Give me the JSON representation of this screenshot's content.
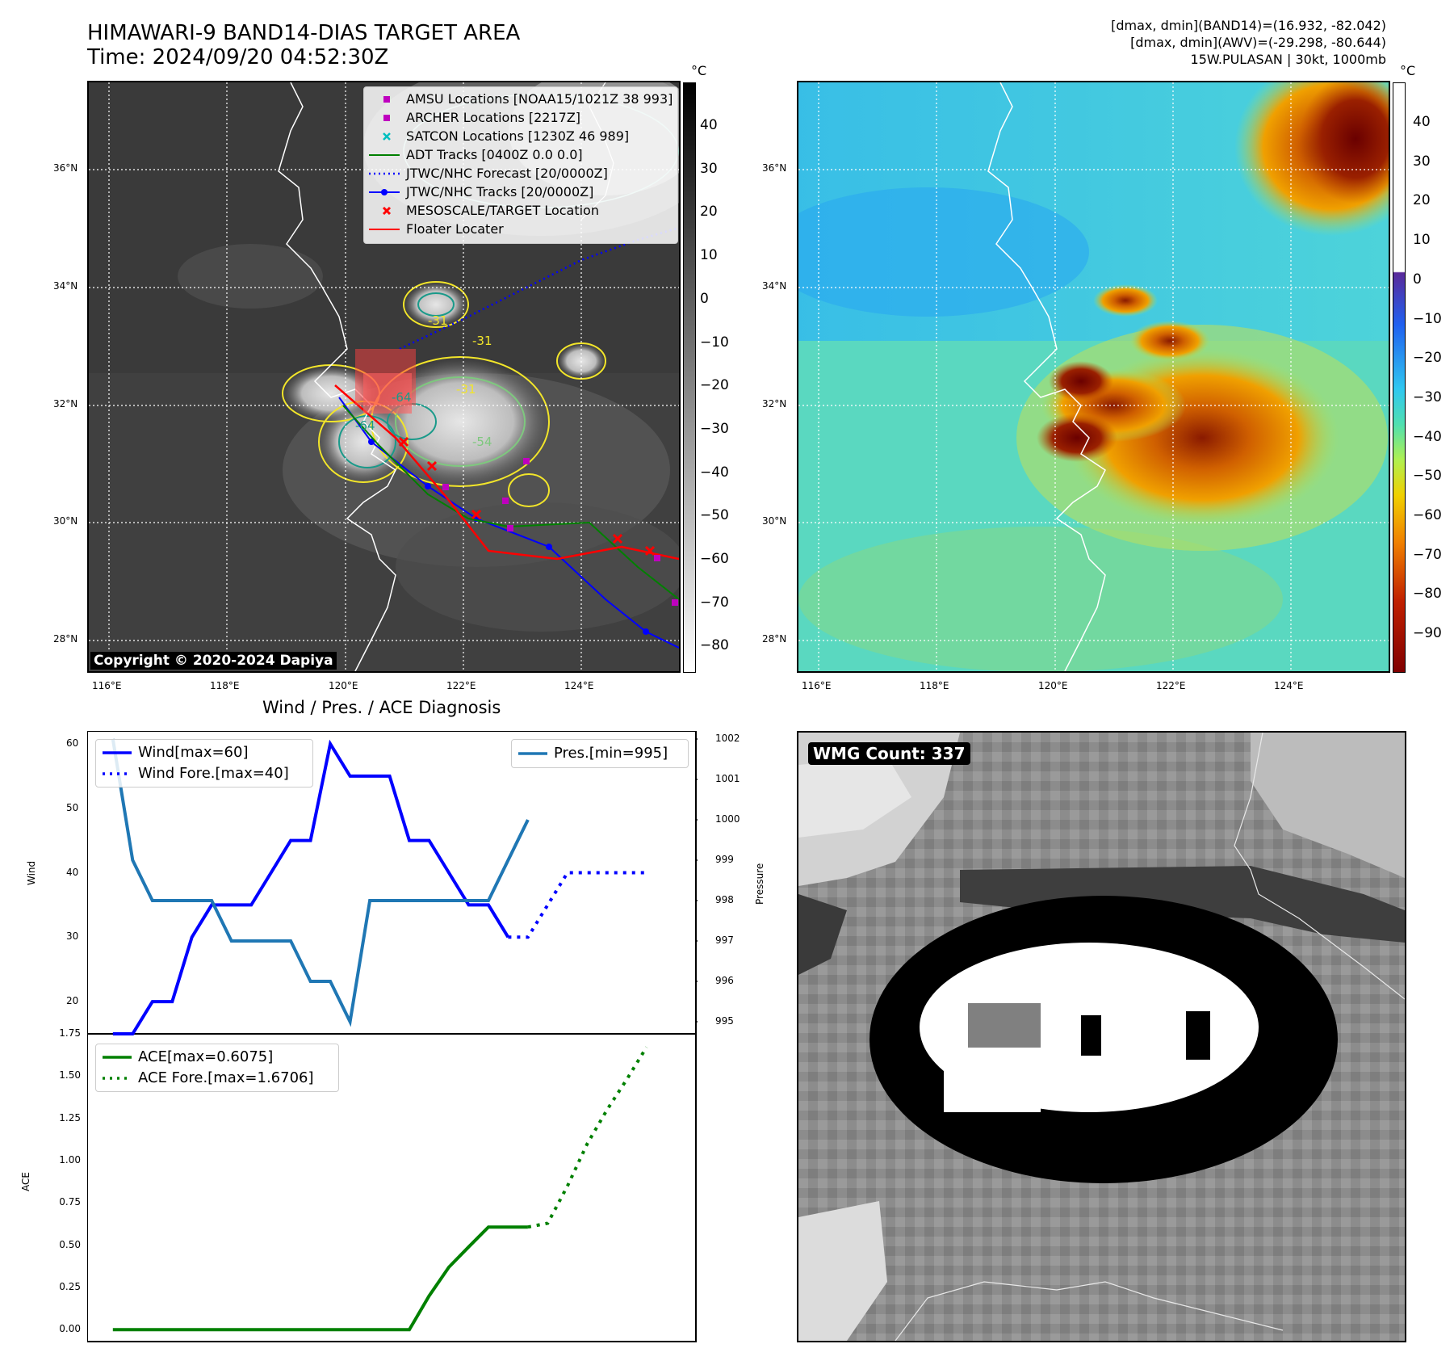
{
  "header": {
    "title_line1": "HIMAWARI-9 BAND14-DIAS TARGET AREA",
    "title_line2": "Time: 2024/09/20 04:52:30Z",
    "stats_line1": "[dmax, dmin](BAND14)=(16.932, -82.042)",
    "stats_line2": "[dmax, dmin](AWV)=(-29.298, -80.644)",
    "stats_line3": "15W.PULASAN | 30kt, 1000mb"
  },
  "map_left": {
    "lat_labels": [
      "36°N",
      "34°N",
      "32°N",
      "30°N",
      "28°N"
    ],
    "lon_labels": [
      "116°E",
      "118°E",
      "120°E",
      "122°E",
      "124°E"
    ],
    "contour_labels": [
      "-31",
      "-31",
      "-31",
      "-64",
      "-64",
      "-54"
    ],
    "copyright": "Copyright © 2020-2024 Dapiya",
    "legend": [
      {
        "label": "AMSU Locations [NOAA15/1021Z 38 993]",
        "marker": "square",
        "color": "#bf00bf"
      },
      {
        "label": "ARCHER Locations [2217Z]",
        "marker": "square",
        "color": "#bf00bf"
      },
      {
        "label": "SATCON Locations [1230Z 46 989]",
        "marker": "x",
        "color": "#00bfbf"
      },
      {
        "label": "ADT Tracks [0400Z 0.0 0.0]",
        "marker": "line",
        "color": "#008000"
      },
      {
        "label": "JTWC/NHC Forecast [20/0000Z]",
        "marker": "dotted",
        "color": "#0000ff"
      },
      {
        "label": "JTWC/NHC Tracks [20/0000Z]",
        "marker": "line-dot",
        "color": "#0000ff"
      },
      {
        "label": "MESOSCALE/TARGET Location",
        "marker": "x",
        "color": "#ff0000"
      },
      {
        "label": "Floater Locater",
        "marker": "line",
        "color": "#ff0000"
      }
    ],
    "colorbar": {
      "unit": "°C",
      "ticks": [
        "40",
        "30",
        "20",
        "10",
        "0",
        "−10",
        "−20",
        "−30",
        "−40",
        "−50",
        "−60",
        "−70",
        "−80"
      ]
    }
  },
  "map_right": {
    "lat_labels": [
      "36°N",
      "34°N",
      "32°N",
      "30°N",
      "28°N"
    ],
    "lon_labels": [
      "116°E",
      "118°E",
      "120°E",
      "122°E",
      "124°E"
    ],
    "colorbar": {
      "unit": "°C",
      "ticks": [
        "40",
        "30",
        "20",
        "10",
        "0",
        "−10",
        "−20",
        "−30",
        "−40",
        "−50",
        "−60",
        "−70",
        "−80",
        "−90"
      ]
    }
  },
  "wmg": {
    "badge": "WMG Count: 337"
  },
  "chart_data": [
    {
      "type": "line",
      "title": "Wind / Pres. / ACE Diagnosis",
      "ylabel": "Wind",
      "ylabel_right": "Pressure",
      "x": [
        0,
        1,
        2,
        3,
        4,
        5,
        6,
        7,
        8,
        9,
        10,
        11,
        12,
        13,
        14,
        15,
        16,
        17,
        18,
        19,
        20
      ],
      "ylim": [
        15,
        62
      ],
      "yticks": [
        "60",
        "50",
        "40",
        "30",
        "20"
      ],
      "ylim_right": [
        994.7,
        1002.2
      ],
      "yticks_right": [
        "1002",
        "1001",
        "1000",
        "999",
        "998",
        "997",
        "996",
        "995"
      ],
      "series": [
        {
          "name": "Wind[max=60]",
          "axis": "left",
          "color": "#0000ff",
          "style": "solid",
          "x": [
            0,
            1,
            2,
            3,
            4,
            5,
            6,
            7,
            8,
            9,
            10,
            11,
            12,
            13,
            14,
            15,
            16,
            17,
            18,
            19,
            20
          ],
          "values": [
            15,
            15,
            20,
            20,
            30,
            35,
            35,
            35,
            40,
            45,
            45,
            60,
            55,
            55,
            55,
            45,
            45,
            40,
            35,
            35,
            30
          ]
        },
        {
          "name": "Wind Fore.[max=40]",
          "axis": "left",
          "color": "#0000ff",
          "style": "dotted",
          "x": [
            20,
            21,
            22,
            23,
            24,
            25,
            26,
            27
          ],
          "values": [
            30,
            30,
            35,
            40,
            40,
            40,
            40,
            40
          ]
        },
        {
          "name": "Pres.[min=995]",
          "axis": "right",
          "color": "#1f77b4",
          "style": "solid",
          "x": [
            0,
            1,
            2,
            3,
            4,
            5,
            6,
            7,
            8,
            9,
            10,
            11,
            12,
            13,
            14,
            15,
            16,
            17,
            18,
            19,
            20,
            21
          ],
          "values": [
            1002,
            999,
            998,
            998,
            998,
            998,
            997,
            997,
            997,
            997,
            996,
            996,
            995,
            998,
            998,
            998,
            998,
            998,
            998,
            998,
            999,
            1000
          ]
        }
      ],
      "legend_left": [
        "Wind[max=60]",
        "Wind Fore.[max=40]"
      ],
      "legend_right": [
        "Pres.[min=995]"
      ]
    },
    {
      "type": "line",
      "ylabel": "ACE",
      "ylim": [
        -0.07,
        1.75
      ],
      "yticks": [
        "1.75",
        "1.50",
        "1.25",
        "1.00",
        "0.75",
        "0.50",
        "0.25",
        "0.00"
      ],
      "series": [
        {
          "name": "ACE[max=0.6075]",
          "color": "#008000",
          "style": "solid",
          "x": [
            0,
            1,
            2,
            3,
            4,
            5,
            6,
            7,
            8,
            9,
            10,
            11,
            12,
            13,
            14,
            15,
            16,
            17,
            18,
            19,
            20,
            21
          ],
          "values": [
            0,
            0,
            0,
            0,
            0,
            0,
            0,
            0,
            0,
            0,
            0,
            0,
            0,
            0,
            0,
            0,
            0.2,
            0.37,
            0.49,
            0.6075,
            0.6075,
            0.6075
          ]
        },
        {
          "name": "ACE Fore.[max=1.6706]",
          "color": "#008000",
          "style": "dotted",
          "x": [
            21,
            22,
            23,
            24,
            25,
            26,
            27
          ],
          "values": [
            0.6075,
            0.63,
            0.85,
            1.1,
            1.3,
            1.48,
            1.6706
          ]
        }
      ]
    }
  ]
}
